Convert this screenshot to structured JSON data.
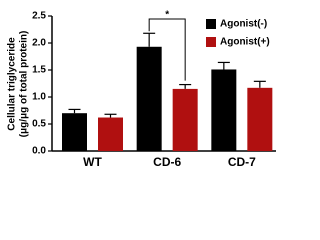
{
  "chart_data": {
    "type": "bar",
    "y_label": [
      "Cellular triglyceride",
      "(μg/μg of total protein)"
    ],
    "categories": [
      "WT",
      "CD-6",
      "CD-7"
    ],
    "series": [
      {
        "name": "Agonist(-)",
        "color": "#000000",
        "values": [
          0.7,
          1.93,
          1.51
        ],
        "errors": [
          0.07,
          0.25,
          0.13
        ]
      },
      {
        "name": "Agonist(+)",
        "color": "#b01010",
        "values": [
          0.62,
          1.15,
          1.17
        ],
        "errors": [
          0.06,
          0.08,
          0.12
        ]
      }
    ],
    "annotation": "*",
    "ylim": [
      0,
      2.5
    ],
    "yticks": [
      {
        "value": 0,
        "label": "0.0"
      },
      {
        "value": 0.5,
        "label": "0.5"
      },
      {
        "value": 1,
        "label": "1.0"
      },
      {
        "value": 1.5,
        "label": "1.5"
      },
      {
        "value": 2,
        "label": "2.0"
      },
      {
        "value": 2.5,
        "label": "2.5"
      }
    ],
    "legend": "top-right"
  }
}
